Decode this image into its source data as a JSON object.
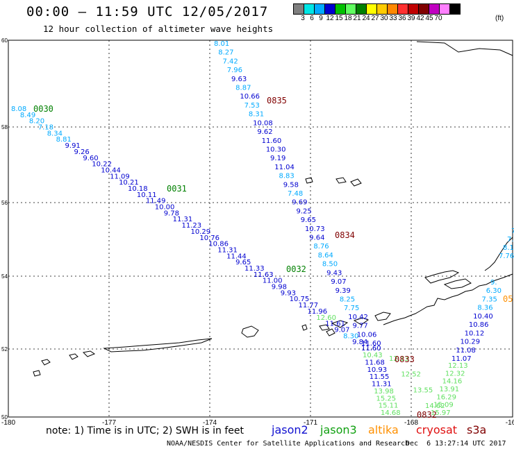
{
  "header": {
    "title": "00:00 — 11:59 UTC 12/05/2017",
    "subtitle": "12 hour collection of altimeter wave heights"
  },
  "colorbar": {
    "colors": [
      "#7f7f7f",
      "#00e5e5",
      "#00aaff",
      "#0000d0",
      "#00c000",
      "#60ff60",
      "#008000",
      "#ffff00",
      "#ffcc00",
      "#ff8800",
      "#ff3030",
      "#c00000",
      "#800000",
      "#c000c0",
      "#ff80ff",
      "#000000"
    ],
    "labels": [
      "3",
      "6",
      "9",
      "12",
      "15",
      "18",
      "21",
      "24",
      "27",
      "30",
      "33",
      "36",
      "39",
      "42",
      "45",
      "70"
    ],
    "unit": "(ft)"
  },
  "axes": {
    "lon_labels": [
      "-180",
      "-177",
      "-174",
      "-171",
      "-168",
      "-16"
    ],
    "lat_labels": [
      "60",
      "58",
      "56",
      "54",
      "52",
      "50"
    ]
  },
  "footer": {
    "note": "note: 1) Time is in UTC; 2) SWH is in feet",
    "satellites": [
      {
        "name": "jason2",
        "color": "#1010d0"
      },
      {
        "name": "jason3",
        "color": "#10a010"
      },
      {
        "name": "altika",
        "color": "#ff9000"
      },
      {
        "name": "cryosat",
        "color": "#e01010"
      },
      {
        "name": "s3a",
        "color": "#800000"
      }
    ],
    "credit": "NOAA/NESDIS Center for Satellite Applications and Research",
    "generated": "Dec  6 13:27:14 UTC 2017"
  },
  "tracks": [
    {
      "name": "track-a",
      "time_labels": [
        {
          "text": "0030",
          "color": "#008000"
        },
        {
          "text": "0031",
          "color": "#008000"
        },
        {
          "text": "0032",
          "color": "#008000"
        }
      ],
      "values": [
        "8.08",
        "8.49",
        "8.20",
        "7.18",
        "8.34",
        "8.81",
        "9.91",
        "9.26",
        "9.60",
        "10.22",
        "10.44",
        "11.09",
        "10.21",
        "10.18",
        "10.11",
        "11.49",
        "10.00",
        "9.78",
        "11.31",
        "11.23",
        "10.29",
        "10.76",
        "10.86",
        "11.31",
        "11.44",
        "9.65",
        "11.33",
        "11.63",
        "11.00",
        "9.98",
        "9.93",
        "10.75",
        "11.77",
        "11.96",
        "12.60",
        "11.61",
        "9.07",
        "8.30",
        "9.84",
        "11.60",
        "10.43",
        "11.68",
        "10.93",
        "11.55",
        "11.31",
        "13.98",
        "15.25",
        "15.11",
        "14.68"
      ],
      "colors": [
        "#00aaff",
        "#00aaff",
        "#00aaff",
        "#00aaff",
        "#00aaff",
        "#00aaff",
        "#0000d0",
        "#0000d0",
        "#0000d0",
        "#0000d0",
        "#0000d0",
        "#0000d0",
        "#0000d0",
        "#0000d0",
        "#0000d0",
        "#0000d0",
        "#0000d0",
        "#0000d0",
        "#0000d0",
        "#0000d0",
        "#0000d0",
        "#0000d0",
        "#0000d0",
        "#0000d0",
        "#0000d0",
        "#0000d0",
        "#0000d0",
        "#0000d0",
        "#0000d0",
        "#0000d0",
        "#0000d0",
        "#0000d0",
        "#0000d0",
        "#0000d0",
        "#60e060",
        "#0000d0",
        "#0000d0",
        "#00aaff",
        "#0000d0",
        "#0000d0",
        "#60e060",
        "#0000d0",
        "#0000d0",
        "#0000d0",
        "#0000d0",
        "#60e060",
        "#60e060",
        "#60e060",
        "#60e060"
      ]
    },
    {
      "name": "track-b",
      "time_labels": [
        {
          "text": "0835",
          "color": "#800000"
        },
        {
          "text": "0834",
          "color": "#800000"
        },
        {
          "text": "0833",
          "color": "#800000"
        },
        {
          "text": "0832",
          "color": "#800000"
        }
      ],
      "values": [
        "8.01",
        "8.27",
        "7.42",
        "7.96",
        "9.63",
        "8.87",
        "10.66",
        "7.53",
        "8.31",
        "10.08",
        "9.62",
        "11.60",
        "10.30",
        "9.19",
        "11.04",
        "8.83",
        "9.58",
        "7.48",
        "9.69",
        "9.25",
        "9.65",
        "10.73",
        "9.64",
        "8.76",
        "8.64",
        "8.50",
        "9.43",
        "9.07",
        "9.39",
        "8.25",
        "7.75",
        "10.42",
        "9.77",
        "10.06",
        "11.60",
        "12.13",
        "12.52",
        "13.55",
        "14.62"
      ],
      "colors": [
        "#00aaff",
        "#00aaff",
        "#00aaff",
        "#00aaff",
        "#0000d0",
        "#00aaff",
        "#0000d0",
        "#00aaff",
        "#00aaff",
        "#0000d0",
        "#0000d0",
        "#0000d0",
        "#0000d0",
        "#0000d0",
        "#0000d0",
        "#00aaff",
        "#0000d0",
        "#00aaff",
        "#0000d0",
        "#0000d0",
        "#0000d0",
        "#0000d0",
        "#0000d0",
        "#00aaff",
        "#00aaff",
        "#00aaff",
        "#0000d0",
        "#0000d0",
        "#0000d0",
        "#00aaff",
        "#00aaff",
        "#0000d0",
        "#0000d0",
        "#0000d0",
        "#0000d0",
        "#60e060",
        "#60e060",
        "#60e060",
        "#60e060"
      ]
    },
    {
      "name": "track-c",
      "values": [
        "7.",
        "7.",
        "8.1",
        "7.76",
        "9.",
        "6.30",
        "7.35",
        "8.36",
        "10.40",
        "10.86",
        "10.12",
        "10.29",
        "11.08",
        "11.07",
        "12.13",
        "12.32",
        "14.16",
        "13.91",
        "16.29",
        "15.09",
        "15.97"
      ],
      "colors": [
        "#00aaff",
        "#00aaff",
        "#00aaff",
        "#00aaff",
        "#00aaff",
        "#00aaff",
        "#00aaff",
        "#00aaff",
        "#0000d0",
        "#0000d0",
        "#0000d0",
        "#0000d0",
        "#0000d0",
        "#0000d0",
        "#60e060",
        "#60e060",
        "#60e060",
        "#60e060",
        "#60e060",
        "#60e060",
        "#60e060"
      ],
      "extra": [
        {
          "text": "05",
          "color": "#ff9000"
        }
      ]
    }
  ]
}
